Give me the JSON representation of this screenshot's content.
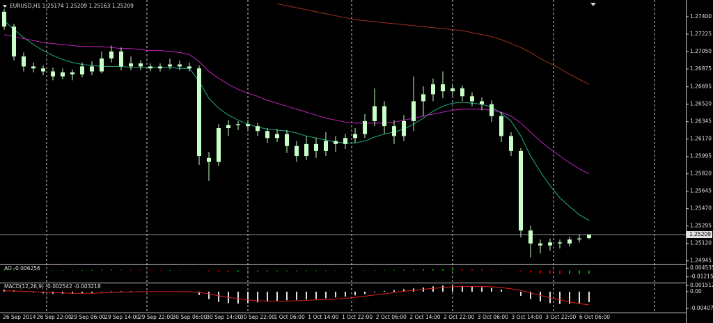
{
  "chart_data": [
    {
      "type": "candlestick",
      "title": "EURUSD,H1  1.25174 1.25209 1.25163 1.25209",
      "color": "#c8ffc8",
      "ohlc": {
        "open": [
          1.2745,
          1.273,
          1.27,
          1.269,
          1.2688,
          1.2685,
          1.268,
          1.2684,
          1.2682,
          1.269,
          1.2685,
          1.2698,
          1.2705,
          1.269,
          1.2693,
          1.269,
          1.2688,
          1.269,
          1.2692,
          1.269,
          1.2688,
          1.2598,
          1.2594,
          1.2628,
          1.2631,
          1.2632,
          1.263,
          1.2625,
          1.2618,
          1.2622,
          1.261,
          1.26,
          1.2612,
          1.2605,
          1.2615,
          1.2612,
          1.2618,
          1.2622,
          1.2635,
          1.265,
          1.263,
          1.262,
          1.2635,
          1.2655,
          1.2662,
          1.2672,
          1.2665,
          1.2668,
          1.266,
          1.2655,
          1.2652,
          1.264,
          1.262,
          1.2605,
          1.2525,
          1.2512,
          1.251,
          1.2513,
          1.2512,
          1.2516,
          1.25174
        ],
        "high": [
          1.2748,
          1.2733,
          1.2704,
          1.2694,
          1.2691,
          1.2689,
          1.2688,
          1.2687,
          1.2694,
          1.2695,
          1.2705,
          1.2711,
          1.2709,
          1.27,
          1.2696,
          1.2693,
          1.2693,
          1.2698,
          1.2696,
          1.2694,
          1.2691,
          1.2604,
          1.2632,
          1.2636,
          1.2635,
          1.2636,
          1.2633,
          1.2628,
          1.2627,
          1.2626,
          1.2615,
          1.262,
          1.2618,
          1.2624,
          1.262,
          1.2622,
          1.2628,
          1.2642,
          1.2668,
          1.2655,
          1.2636,
          1.2641,
          1.268,
          1.267,
          1.2678,
          1.2685,
          1.2672,
          1.2671,
          1.2664,
          1.2659,
          1.2656,
          1.2644,
          1.2624,
          1.2608,
          1.253,
          1.2516,
          1.2517,
          1.2516,
          1.2519,
          1.2521,
          1.25209
        ],
        "low": [
          1.2727,
          1.2696,
          1.2685,
          1.2684,
          1.2681,
          1.2676,
          1.2677,
          1.2676,
          1.2679,
          1.2681,
          1.2683,
          1.2694,
          1.2686,
          1.2686,
          1.2686,
          1.2685,
          1.2685,
          1.2687,
          1.2686,
          1.2685,
          1.2591,
          1.2575,
          1.259,
          1.262,
          1.2626,
          1.2626,
          1.262,
          1.2613,
          1.2614,
          1.2603,
          1.2594,
          1.2596,
          1.2598,
          1.26,
          1.2604,
          1.2607,
          1.2613,
          1.2618,
          1.263,
          1.2622,
          1.2612,
          1.2615,
          1.2625,
          1.264,
          1.2655,
          1.2658,
          1.266,
          1.2655,
          1.265,
          1.2646,
          1.2634,
          1.2614,
          1.26,
          1.2518,
          1.2498,
          1.2502,
          1.2505,
          1.2507,
          1.2509,
          1.2513,
          1.25163
        ],
        "close": [
          1.273,
          1.27,
          1.269,
          1.2688,
          1.2685,
          1.268,
          1.2684,
          1.2682,
          1.269,
          1.2685,
          1.2698,
          1.2705,
          1.269,
          1.2693,
          1.269,
          1.2688,
          1.269,
          1.2692,
          1.269,
          1.2688,
          1.26,
          1.2594,
          1.2628,
          1.2631,
          1.2632,
          1.263,
          1.2625,
          1.2618,
          1.2622,
          1.261,
          1.26,
          1.2612,
          1.2605,
          1.2615,
          1.2612,
          1.2618,
          1.2622,
          1.2635,
          1.265,
          1.263,
          1.262,
          1.2635,
          1.2655,
          1.2662,
          1.2672,
          1.2665,
          1.2668,
          1.266,
          1.2655,
          1.2652,
          1.264,
          1.262,
          1.2605,
          1.2525,
          1.2512,
          1.251,
          1.2513,
          1.2512,
          1.2516,
          1.2517,
          1.25209
        ]
      },
      "series": [
        {
          "color": "#20b080",
          "values": [
            1.2736,
            1.2727,
            1.2719,
            1.2712,
            1.2706,
            1.2701,
            1.2697,
            1.2694,
            1.2692,
            1.2691,
            1.269,
            1.269,
            1.269,
            1.2689,
            1.2689,
            1.2689,
            1.2689,
            1.2689,
            1.2688,
            1.2688,
            1.2675,
            1.2658,
            1.2648,
            1.2641,
            1.2636,
            1.2632,
            1.2629,
            1.2627,
            1.2626,
            1.2625,
            1.2623,
            1.262,
            1.2618,
            1.2616,
            1.2614,
            1.2613,
            1.2613,
            1.2615,
            1.2619,
            1.2622,
            1.2624,
            1.2627,
            1.2632,
            1.2638,
            1.2645,
            1.265,
            1.2653,
            1.2654,
            1.2653,
            1.2652,
            1.2649,
            1.2643,
            1.2635,
            1.262,
            1.26,
            1.2584,
            1.257,
            1.2558,
            1.2549,
            1.2541,
            1.2535
          ]
        },
        {
          "color": "#c020c0",
          "values": [
            1.2722,
            1.272,
            1.2718,
            1.2716,
            1.2714,
            1.2713,
            1.2712,
            1.2711,
            1.271,
            1.271,
            1.271,
            1.2709,
            1.2708,
            1.2708,
            1.2707,
            1.2706,
            1.2706,
            1.2705,
            1.2704,
            1.2702,
            1.2695,
            1.2685,
            1.2678,
            1.2672,
            1.2667,
            1.2663,
            1.266,
            1.2656,
            1.2653,
            1.265,
            1.2647,
            1.2644,
            1.2641,
            1.2638,
            1.2636,
            1.2634,
            1.2633,
            1.2633,
            1.2633,
            1.2633,
            1.2634,
            1.2636,
            1.2638,
            1.264,
            1.2642,
            1.2644,
            1.2646,
            1.2647,
            1.2647,
            1.2647,
            1.2646,
            1.2644,
            1.264,
            1.2633,
            1.2624,
            1.2615,
            1.2607,
            1.26,
            1.2593,
            1.2587,
            1.2582
          ]
        },
        {
          "color": "#a03020",
          "values": [
            null,
            null,
            null,
            null,
            null,
            null,
            null,
            null,
            null,
            null,
            null,
            null,
            null,
            null,
            null,
            null,
            null,
            null,
            null,
            null,
            null,
            null,
            null,
            null,
            null,
            null,
            null,
            null,
            1.2753,
            1.2751,
            1.2749,
            1.2747,
            1.2745,
            1.2743,
            1.2741,
            1.2739,
            1.2737,
            1.2736,
            1.2735,
            1.2734,
            1.2733,
            1.2732,
            1.2731,
            1.273,
            1.2729,
            1.2728,
            1.2727,
            1.2726,
            1.2724,
            1.2722,
            1.272,
            1.2717,
            1.2713,
            1.2709,
            1.2704,
            1.2698,
            1.2693,
            1.2688,
            1.2682,
            1.2677,
            1.2672
          ]
        }
      ],
      "ylim": [
        1.24922,
        1.27568
      ],
      "yticks": [
        {
          "value": 1.274,
          "label": "1.27400"
        },
        {
          "value": 1.27225,
          "label": "1.27225"
        },
        {
          "value": 1.2705,
          "label": "1.27050"
        },
        {
          "value": 1.26875,
          "label": "1.26875"
        },
        {
          "value": 1.26695,
          "label": "1.26695"
        },
        {
          "value": 1.2652,
          "label": "1.26520"
        },
        {
          "value": 1.26345,
          "label": "1.26345"
        },
        {
          "value": 1.2617,
          "label": "1.26170"
        },
        {
          "value": 1.25995,
          "label": "1.25995"
        },
        {
          "value": 1.2582,
          "label": "1.25820"
        },
        {
          "value": 1.25645,
          "label": "1.25645"
        },
        {
          "value": 1.2547,
          "label": "1.25470"
        },
        {
          "value": 1.25295,
          "label": "1.25295"
        },
        {
          "value": 1.2512,
          "label": "1.25120"
        },
        {
          "value": 1.24945,
          "label": "1.24945"
        }
      ],
      "price_line": {
        "value": 1.25209,
        "label": "1.25209"
      },
      "time_labels": [
        "26 Sep 2014",
        "26 Sep 22:00",
        "29 Sep 06:00",
        "29 Sep 14:00",
        "29 Sep 22:00",
        "30 Sep 06:00",
        "30 Sep 14:00",
        "30 Sep 22:00",
        "1 Oct 06:00",
        "1 Oct 14:00",
        "1 Oct 22:00",
        "2 Oct 06:00",
        "2 Oct 14:00",
        "2 Oct 22:00",
        "3 Oct 06:00",
        "3 Oct 14:00",
        "3 Oct 22:00",
        "6 Oct 06:00"
      ]
    },
    {
      "type": "bar",
      "title": "AO -0.006256",
      "up_color": "#00a000",
      "down_color": "#c00000",
      "values": [
        0.002,
        0.002,
        0.001,
        0.001,
        0.0005,
        0.0005,
        0.0008,
        0.001,
        0.001,
        0.0012,
        0.0015,
        0.0018,
        0.0016,
        0.0015,
        0.0014,
        0.0012,
        0.001,
        0.001,
        0.0008,
        0.0006,
        -0.0005,
        -0.002,
        -0.0028,
        -0.003,
        -0.0028,
        -0.0025,
        -0.0022,
        -0.002,
        -0.0018,
        -0.0016,
        -0.0015,
        -0.0013,
        -0.0012,
        -0.001,
        -0.0008,
        -0.0005,
        0,
        0.0005,
        0.001,
        0.0013,
        0.0014,
        0.0016,
        0.002,
        0.0024,
        0.0028,
        0.003,
        0.0031,
        0.003,
        0.0028,
        0.0024,
        0.0018,
        0.001,
        -0.0002,
        -0.002,
        -0.004,
        -0.0055,
        -0.0065,
        -0.007,
        -0.007,
        -0.0068,
        -0.006256
      ],
      "ylim": [
        -0.02188,
        0.01149
      ],
      "yticks": [
        0.004535,
        -0.012151
      ]
    },
    {
      "type": "macd",
      "title": "MACD(12,26,9) -0.002542 -0.003218",
      "color": "#e0e0e0",
      "signal_color": "#e02020",
      "values": [
        0.0005,
        0.0003,
        0,
        -0.0002,
        -0.0004,
        -0.0005,
        -0.0005,
        -0.0005,
        -0.0004,
        -0.0003,
        -0.0001,
        0.0001,
        0.0001,
        0.0001,
        0.0001,
        0,
        0,
        0,
        0,
        -0.0001,
        -0.0008,
        -0.0018,
        -0.0025,
        -0.0028,
        -0.0029,
        -0.0028,
        -0.0026,
        -0.0024,
        -0.0022,
        -0.0021,
        -0.002,
        -0.0019,
        -0.0018,
        -0.0016,
        -0.0014,
        -0.0012,
        -0.0009,
        -0.0006,
        -0.0002,
        0.0002,
        0.0004,
        0.0006,
        0.0008,
        0.001,
        0.0013,
        0.0015,
        0.0015,
        0.0014,
        0.0013,
        0.0011,
        0.0009,
        0.0005,
        0,
        -0.001,
        -0.0018,
        -0.0024,
        -0.0028,
        -0.003,
        -0.003,
        -0.0028,
        -0.002542
      ],
      "signal": [
        0.0002,
        0.0002,
        0.0001,
        0,
        -0.0001,
        -0.0002,
        -0.0003,
        -0.0004,
        -0.0004,
        -0.0004,
        -0.0003,
        -0.0002,
        -0.0001,
        -0.0001,
        0,
        0,
        0,
        0,
        0,
        0,
        -0.0002,
        -0.0005,
        -0.001,
        -0.0014,
        -0.0017,
        -0.002,
        -0.0022,
        -0.0023,
        -0.0023,
        -0.0023,
        -0.0022,
        -0.0021,
        -0.002,
        -0.0019,
        -0.0018,
        -0.0016,
        -0.0014,
        -0.0011,
        -0.0008,
        -0.0005,
        -0.0002,
        0.0001,
        0.0003,
        0.0006,
        0.0008,
        0.001,
        0.0012,
        0.0013,
        0.0013,
        0.0013,
        0.0012,
        0.001,
        0.0007,
        0.0003,
        -0.0003,
        -0.0009,
        -0.0015,
        -0.002,
        -0.0025,
        -0.0029,
        -0.003218
      ],
      "ylim": [
        -0.00492,
        0.00204
      ],
      "yticks": [
        0.001512,
        {
          "value": 0,
          "label": "0.00"
        },
        -0.004071
      ]
    }
  ]
}
